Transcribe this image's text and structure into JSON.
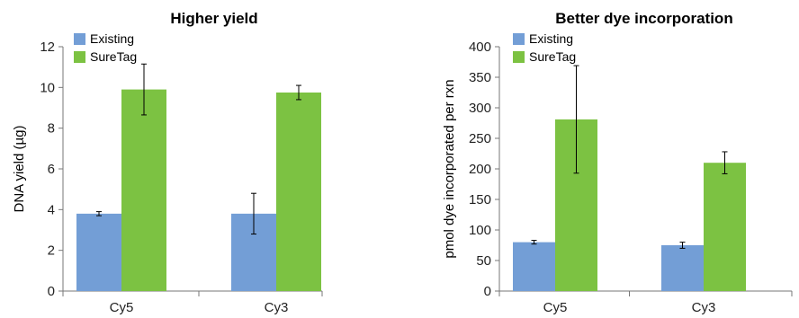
{
  "chart_data": [
    {
      "type": "bar",
      "title": "Higher yield",
      "xlabel": "",
      "ylabel": "DNA yield (µg)",
      "categories": [
        "Cy5",
        "Cy3"
      ],
      "ylim": [
        0,
        12
      ],
      "yticks": [
        "0",
        "2",
        "4",
        "6",
        "8",
        "10",
        "12"
      ],
      "legend_position": "top-left",
      "series": [
        {
          "name": "Existing",
          "color": "#739ed6",
          "values": [
            3.8,
            3.8
          ],
          "error": [
            0.1,
            1.0
          ]
        },
        {
          "name": "SureTag",
          "color": "#7cc242",
          "values": [
            9.9,
            9.75
          ],
          "error": [
            1.25,
            0.35
          ]
        }
      ]
    },
    {
      "type": "bar",
      "title": "Better dye incorporation",
      "xlabel": "",
      "ylabel": "pmol dye incorporated per rxn",
      "categories": [
        "Cy5",
        "Cy3"
      ],
      "ylim": [
        0,
        400
      ],
      "yticks": [
        "0",
        "50",
        "100",
        "150",
        "200",
        "250",
        "300",
        "350",
        "400"
      ],
      "legend_position": "top-left",
      "series": [
        {
          "name": "Existing",
          "color": "#739ed6",
          "values": [
            80,
            75
          ],
          "error": [
            3,
            5
          ]
        },
        {
          "name": "SureTag",
          "color": "#7cc242",
          "values": [
            281,
            210
          ],
          "error": [
            88,
            18
          ]
        }
      ]
    }
  ]
}
